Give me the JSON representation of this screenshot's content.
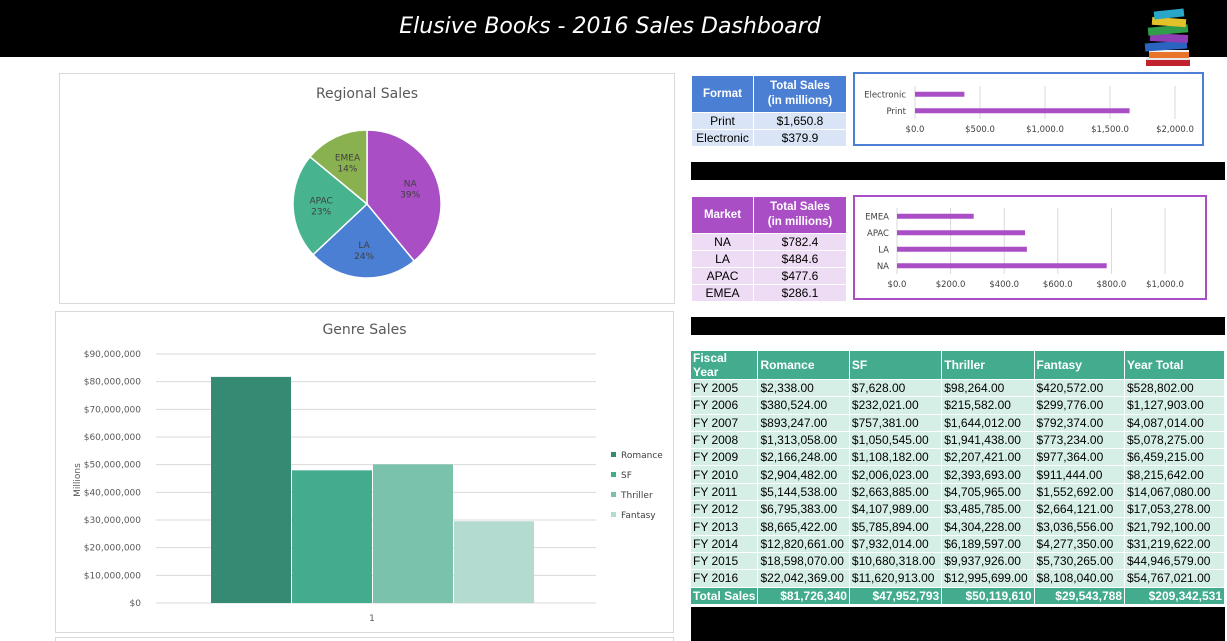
{
  "header": {
    "title": "Elusive Books - 2016 Sales Dashboard",
    "icon": "books-stack-icon"
  },
  "colors": {
    "na": "#a94ec5",
    "la": "#4a7fd4",
    "apac": "#48b48f",
    "emea": "#8ab14f",
    "romance": "#358a73",
    "sf": "#43ab8e",
    "thriller": "#7bc2ad",
    "fantasy": "#b3dbcf",
    "format_header": "#4a7fd4",
    "market_header": "#a94ec5",
    "table_header": "#43ab8e"
  },
  "regional_chart": {
    "title": "Regional Sales",
    "chart_data": {
      "type": "pie",
      "title": "Regional Sales",
      "slices": [
        {
          "label": "NA",
          "percent": "39%",
          "value": 39
        },
        {
          "label": "LA",
          "percent": "24%",
          "value": 24
        },
        {
          "label": "APAC",
          "percent": "23%",
          "value": 23
        },
        {
          "label": "EMEA",
          "percent": "14%",
          "value": 14
        }
      ]
    }
  },
  "genre_chart": {
    "title": "Genre Sales",
    "chart_data": {
      "type": "bar",
      "title": "Genre Sales",
      "ylabel": "Millions",
      "categories": [
        "1"
      ],
      "ylim": [
        0,
        90000000
      ],
      "yticks": [
        "$0",
        "$10,000,000",
        "$20,000,000",
        "$30,000,000",
        "$40,000,000",
        "$50,000,000",
        "$60,000,000",
        "$70,000,000",
        "$80,000,000",
        "$90,000,000"
      ],
      "series": [
        {
          "name": "Romance",
          "values": [
            81726340
          ]
        },
        {
          "name": "SF",
          "values": [
            47952793
          ]
        },
        {
          "name": "Thriller",
          "values": [
            50119610
          ]
        },
        {
          "name": "Fantasy",
          "values": [
            29543788
          ]
        }
      ],
      "legend": "right"
    }
  },
  "format_table": {
    "headers": [
      "Format",
      "Total Sales",
      "(in millions)"
    ],
    "rows": [
      {
        "format": "Print",
        "sales": "$1,650.8"
      },
      {
        "format": "Electronic",
        "sales": "$379.9"
      }
    ]
  },
  "format_chart": {
    "chart_data": {
      "type": "bar",
      "orientation": "horizontal",
      "categories": [
        "Electronic",
        "Print"
      ],
      "values": [
        379.9,
        1650.8
      ],
      "xlim": [
        0,
        2000
      ],
      "xticks": [
        "$0.0",
        "$500.0",
        "$1,000.0",
        "$1,500.0",
        "$2,000.0"
      ]
    }
  },
  "market_table": {
    "headers": [
      "Market",
      "Total Sales",
      "(in millions)"
    ],
    "rows": [
      {
        "market": "NA",
        "sales": "$782.4"
      },
      {
        "market": "LA",
        "sales": "$484.6"
      },
      {
        "market": "APAC",
        "sales": "$477.6"
      },
      {
        "market": "EMEA",
        "sales": "$286.1"
      }
    ]
  },
  "market_chart": {
    "chart_data": {
      "type": "bar",
      "orientation": "horizontal",
      "categories": [
        "EMEA",
        "APAC",
        "LA",
        "NA"
      ],
      "values": [
        286.1,
        477.6,
        484.6,
        782.4
      ],
      "xlim": [
        0,
        1000
      ],
      "xticks": [
        "$0.0",
        "$200.0",
        "$400.0",
        "$600.0",
        "$800.0",
        "$1,000.0"
      ]
    }
  },
  "sales_table": {
    "headers": [
      "Fiscal Year",
      "Romance",
      "SF",
      "Thriller",
      "Fantasy",
      "Year Total"
    ],
    "rows": [
      [
        "FY 2005",
        "$2,338.00",
        "$7,628.00",
        "$98,264.00",
        "$420,572.00",
        "$528,802.00"
      ],
      [
        "FY 2006",
        "$380,524.00",
        "$232,021.00",
        "$215,582.00",
        "$299,776.00",
        "$1,127,903.00"
      ],
      [
        "FY 2007",
        "$893,247.00",
        "$757,381.00",
        "$1,644,012.00",
        "$792,374.00",
        "$4,087,014.00"
      ],
      [
        "FY 2008",
        "$1,313,058.00",
        "$1,050,545.00",
        "$1,941,438.00",
        "$773,234.00",
        "$5,078,275.00"
      ],
      [
        "FY 2009",
        "$2,166,248.00",
        "$1,108,182.00",
        "$2,207,421.00",
        "$977,364.00",
        "$6,459,215.00"
      ],
      [
        "FY 2010",
        "$2,904,482.00",
        "$2,006,023.00",
        "$2,393,693.00",
        "$911,444.00",
        "$8,215,642.00"
      ],
      [
        "FY 2011",
        "$5,144,538.00",
        "$2,663,885.00",
        "$4,705,965.00",
        "$1,552,692.00",
        "$14,067,080.00"
      ],
      [
        "FY 2012",
        "$6,795,383.00",
        "$4,107,989.00",
        "$3,485,785.00",
        "$2,664,121.00",
        "$17,053,278.00"
      ],
      [
        "FY 2013",
        "$8,665,422.00",
        "$5,785,894.00",
        "$4,304,228.00",
        "$3,036,556.00",
        "$21,792,100.00"
      ],
      [
        "FY 2014",
        "$12,820,661.00",
        "$7,932,014.00",
        "$6,189,597.00",
        "$4,277,350.00",
        "$31,219,622.00"
      ],
      [
        "FY 2015",
        "$18,598,070.00",
        "$10,680,318.00",
        "$9,937,926.00",
        "$5,730,265.00",
        "$44,946,579.00"
      ],
      [
        "FY 2016",
        "$22,042,369.00",
        "$11,620,913.00",
        "$12,995,699.00",
        "$8,108,040.00",
        "$54,767,021.00"
      ]
    ],
    "total": [
      "Total Sales",
      "$81,726,340",
      "$47,952,793",
      "$50,119,610",
      "$29,543,788",
      "$209,342,531"
    ]
  }
}
